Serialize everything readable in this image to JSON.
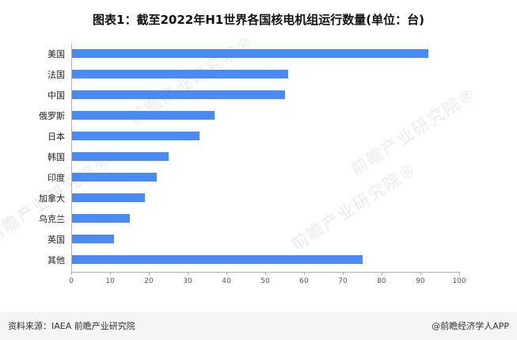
{
  "title": "图表1：截至2022年H1世界各国核电机组运行数量(单位：台)",
  "watermark": {
    "text": "前瞻产业研究院®"
  },
  "footer": {
    "source": "资料来源：IAEA 前瞻产业研究院",
    "credit": "@前瞻经济学人APP"
  },
  "colors": {
    "bar": "#4a8af4",
    "axis": "#b0b0b0"
  },
  "chart_data": {
    "type": "bar",
    "orientation": "horizontal",
    "title": "图表1：截至2022年H1世界各国核电机组运行数量(单位：台)",
    "categories": [
      "美国",
      "法国",
      "中国",
      "俄罗斯",
      "日本",
      "韩国",
      "印度",
      "加拿大",
      "乌克兰",
      "英国",
      "其他"
    ],
    "values": [
      92,
      56,
      55,
      37,
      33,
      25,
      22,
      19,
      15,
      11,
      75
    ],
    "xlabel": "",
    "ylabel": "",
    "xlim": [
      0,
      100
    ],
    "xticks": [
      0,
      10,
      20,
      30,
      40,
      50,
      60,
      70,
      80,
      90,
      100
    ],
    "grid": false,
    "legend": false
  }
}
